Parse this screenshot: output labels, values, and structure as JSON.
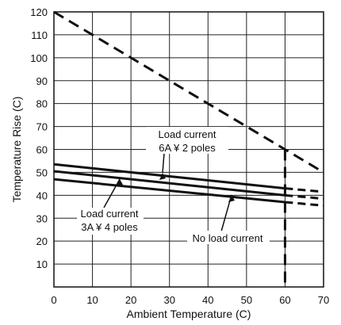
{
  "chart_data": {
    "type": "line",
    "xlabel": "Ambient Temperature (C)",
    "ylabel": "Temperature Rise (C)",
    "xlim": [
      0,
      70
    ],
    "ylim": [
      0,
      120
    ],
    "xticks": [
      0,
      10,
      20,
      30,
      40,
      50,
      60,
      70
    ],
    "yticks": [
      10,
      20,
      30,
      40,
      50,
      60,
      70,
      80,
      90,
      100,
      110,
      120
    ],
    "grid": true,
    "series": [
      {
        "name": "Load current 6A ¥ 2 poles",
        "solid": {
          "x": [
            0,
            60
          ],
          "y": [
            53.5,
            43
          ]
        },
        "dashed": {
          "x": [
            60,
            70
          ],
          "y": [
            43,
            41.5
          ]
        }
      },
      {
        "name": "Load current 3A ¥ 4 poles",
        "solid": {
          "x": [
            0,
            60
          ],
          "y": [
            50.5,
            40
          ]
        },
        "dashed": {
          "x": [
            60,
            70
          ],
          "y": [
            40,
            38.5
          ]
        }
      },
      {
        "name": "No load current",
        "solid": {
          "x": [
            0,
            60
          ],
          "y": [
            47,
            37
          ]
        },
        "dashed": {
          "x": [
            60,
            70
          ],
          "y": [
            37,
            35.5
          ]
        }
      }
    ],
    "limit_line": {
      "x": [
        0,
        60,
        70
      ],
      "y": [
        120,
        60,
        50
      ]
    },
    "vertical_limit": {
      "x": 60,
      "y": [
        0,
        60
      ]
    },
    "annotations": [
      {
        "lines": [
          "Load current",
          "6A ¥ 2 poles"
        ],
        "target": "Load current 6A ¥ 2 poles"
      },
      {
        "lines": [
          "Load current",
          "3A ¥ 4 poles"
        ],
        "target": "Load current 3A ¥ 4 poles"
      },
      {
        "lines": [
          "No load current"
        ],
        "target": "No load current"
      }
    ]
  }
}
